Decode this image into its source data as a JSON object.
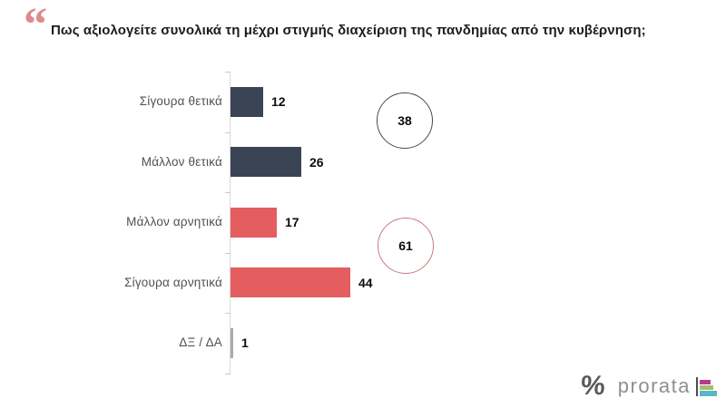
{
  "title": "Πως αξιολογείτε συνολικά τη μέχρι στιγμής διαχείριση της πανδημίας από την κυβέρνηση;",
  "chart_data": {
    "type": "bar",
    "orientation": "horizontal",
    "title": "Πως αξιολογείτε συνολικά τη μέχρι στιγμής διαχείριση της πανδημίας από την κυβέρνηση;",
    "categories": [
      "Σίγουρα θετικά",
      "Μάλλον θετικά",
      "Μάλλον αρνητικά",
      "Σίγουρα αρνητικά",
      "ΔΞ / ΔΑ"
    ],
    "values": [
      12,
      26,
      17,
      44,
      1
    ],
    "bar_colors": [
      "#3b4454",
      "#3b4454",
      "#e45d60",
      "#e45d60",
      "#ababab"
    ],
    "value_labels_shown": true,
    "xlim": [
      0,
      50
    ],
    "grid": false,
    "totals": [
      {
        "name": "positive-total",
        "value": 38,
        "circle_border_color": "#4a4a4a"
      },
      {
        "name": "negative-total",
        "value": 61,
        "circle_border_color": "#c87a7e"
      }
    ]
  },
  "accent": {
    "quote_mark_color": "#dd8a8c",
    "axis_color": "#d9d9d9",
    "label_color": "#4d5156"
  },
  "footer": {
    "logo_text": "prorata",
    "logo_percent_glyph": "%",
    "logo_bar_colors": [
      "#b53c8d",
      "#a4be72",
      "#5cb6c2"
    ],
    "logo_vbar_color": "#4d4d4d"
  }
}
